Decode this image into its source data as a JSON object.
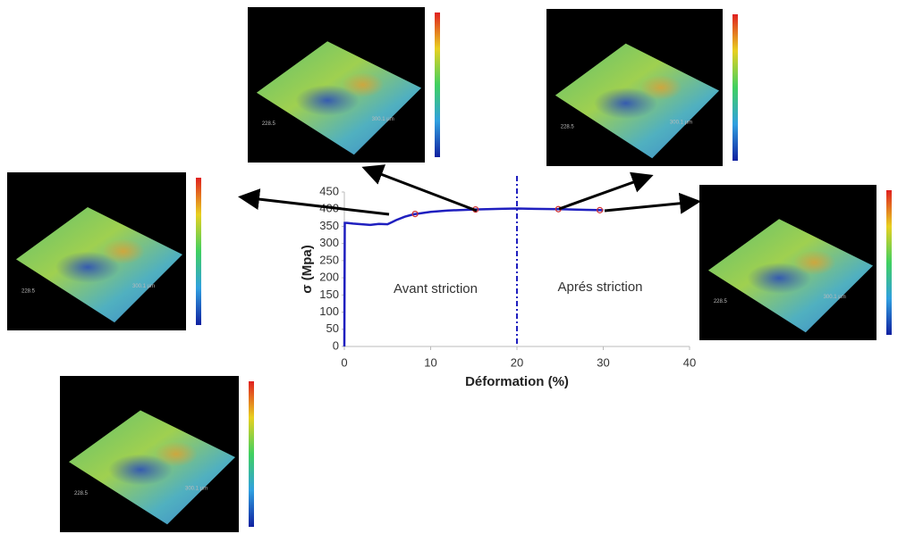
{
  "chart_data": {
    "type": "line",
    "xlabel": "Déformation (%)",
    "ylabel": "σ (Mpa)",
    "xlim": [
      0,
      40
    ],
    "ylim": [
      0,
      450
    ],
    "xticks": [
      0,
      10,
      20,
      30,
      40
    ],
    "yticks": [
      0,
      50,
      100,
      150,
      200,
      250,
      300,
      350,
      400,
      450
    ],
    "series": [
      {
        "color": "#1f1fbf",
        "x": [
          0,
          0.05,
          0.3,
          1,
          2,
          3,
          4,
          5,
          5.5,
          6,
          7,
          8,
          10,
          12,
          15,
          18,
          20,
          22,
          25,
          28,
          30
        ],
        "values": [
          0,
          360,
          360,
          358,
          356,
          354,
          357,
          356,
          362,
          368,
          378,
          385,
          392,
          396,
          399,
          401,
          402,
          401,
          400,
          398,
          397
        ]
      }
    ],
    "points": {
      "color": "#d03030",
      "x": [
        8.2,
        15.2,
        24.8,
        29.6
      ],
      "values": [
        386,
        399,
        400,
        397
      ]
    },
    "vline": {
      "x": 20,
      "color": "#1f1fbf"
    },
    "annotations": [
      "Avant striction",
      "Aprés striction"
    ],
    "images": [
      {
        "label_a": "228.5",
        "label_b": "300.1 µm"
      },
      {
        "label_a": "228.5",
        "label_b": "300.1 µm"
      },
      {
        "label_a": "228.5",
        "label_b": "300.1 µm"
      },
      {
        "label_a": "228.5",
        "label_b": "300.1 µm"
      },
      {
        "label_a": "228.5",
        "label_b": "300.1 µm"
      }
    ]
  }
}
